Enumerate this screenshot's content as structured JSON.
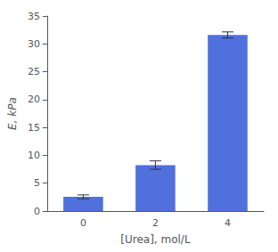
{
  "chart_data": {
    "type": "bar",
    "categories": [
      "0",
      "2",
      "4"
    ],
    "values": [
      2.55,
      8.25,
      31.6
    ],
    "errors": [
      0.35,
      0.75,
      0.55
    ],
    "xlabel": "[Urea], mol/L",
    "ylabel": "E, kPa",
    "ylim": [
      0,
      35
    ],
    "yticks": [
      0,
      5,
      10,
      15,
      20,
      25,
      30,
      35
    ],
    "grid": false
  }
}
